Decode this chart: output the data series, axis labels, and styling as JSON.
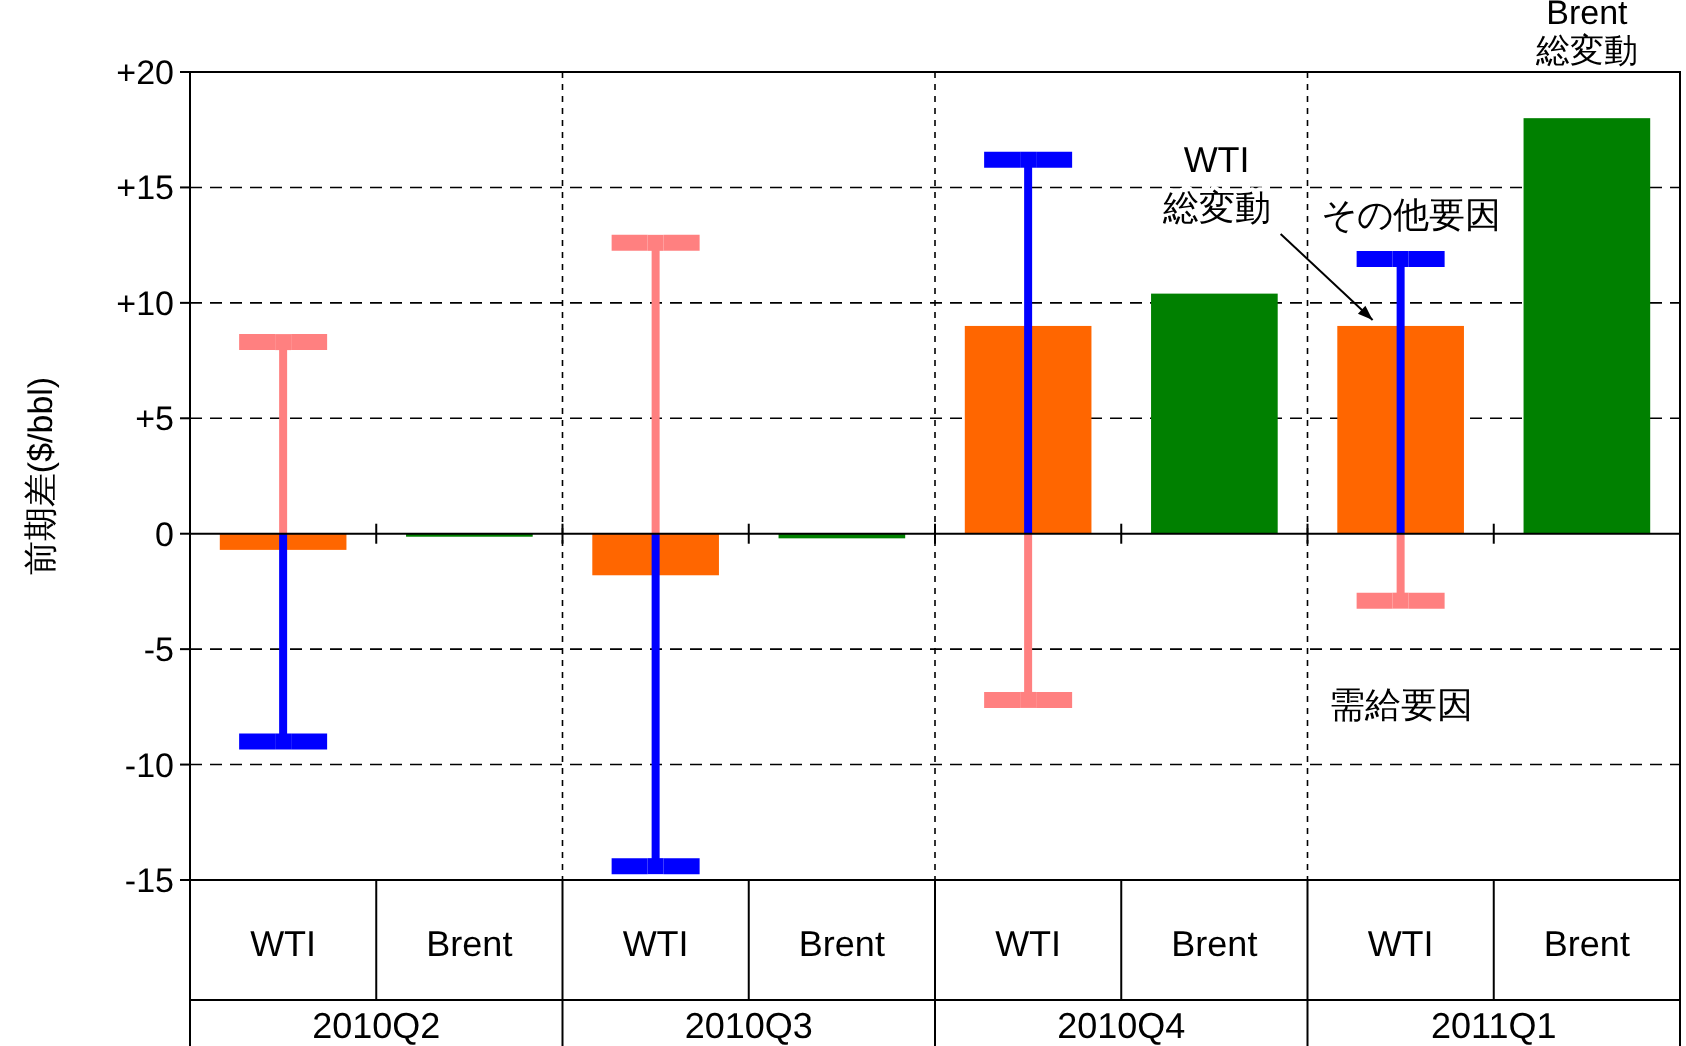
{
  "chart_data": {
    "type": "bar",
    "ylabel": "前期差($/bbl)",
    "categories": [
      "WTI",
      "Brent",
      "WTI",
      "Brent",
      "WTI",
      "Brent",
      "WTI",
      "Brent"
    ],
    "annotations": [
      "2010Q2",
      "2010Q3",
      "2010Q4",
      "2011Q1"
    ],
    "series": [
      {
        "name": "WTI\n総変動",
        "color": "#ff6600",
        "values": [
          -0.7,
          null,
          -1.8,
          null,
          9.0,
          null,
          9.0,
          null
        ]
      },
      {
        "name": "Brent\n総変動",
        "color": "#008000",
        "values": [
          null,
          -0.1,
          null,
          -0.2,
          null,
          10.4,
          null,
          18.0
        ]
      },
      {
        "type": "lollipop",
        "name": "需給要因",
        "color": "#ff8080",
        "values": [
          8.3,
          null,
          12.6,
          null,
          -7.2,
          null,
          -2.9,
          null
        ]
      },
      {
        "type": "lollipop",
        "name": "その他要因",
        "color": "#0000ff",
        "values": [
          -9.0,
          null,
          -14.4,
          null,
          16.2,
          null,
          11.9,
          null
        ]
      }
    ],
    "ylim": [
      -15,
      20
    ],
    "yticks": [
      {
        "value": -15,
        "label": "-15"
      },
      {
        "value": -10,
        "label": "-10"
      },
      {
        "value": -5,
        "label": "-5"
      },
      0,
      {
        "value": 5,
        "label": "+5"
      },
      {
        "value": 10,
        "label": "+10"
      },
      {
        "value": 15,
        "label": "+15"
      },
      {
        "value": 20,
        "label": "+20"
      }
    ],
    "grid": "y"
  }
}
